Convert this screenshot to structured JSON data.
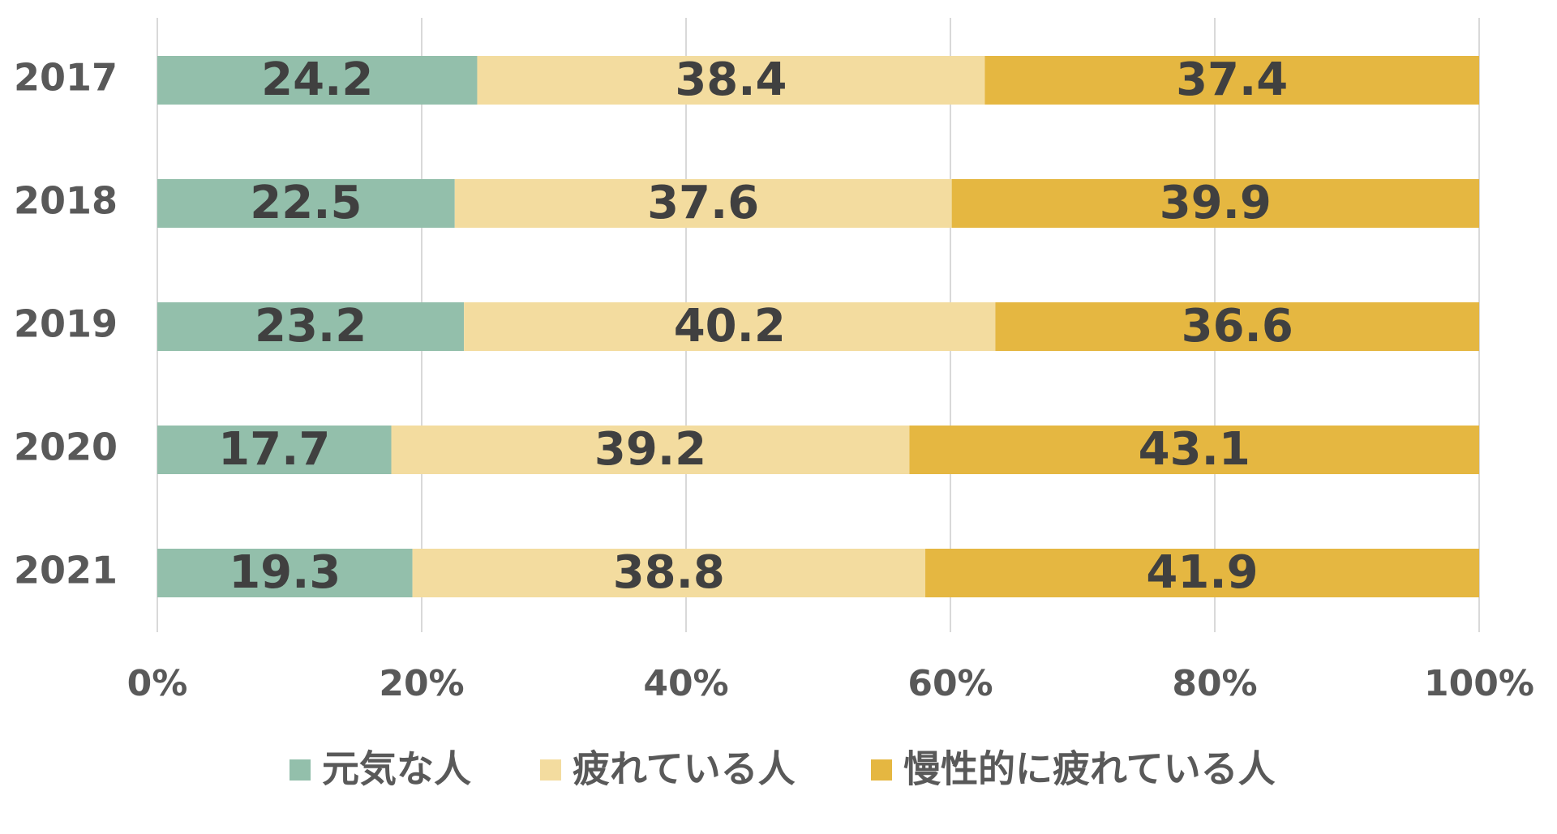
{
  "chart_data": {
    "type": "bar",
    "orientation": "horizontal",
    "stacked": "percent",
    "categories": [
      "2017",
      "2018",
      "2019",
      "2020",
      "2021"
    ],
    "series": [
      {
        "name": "元気な人",
        "color": "#93bfab",
        "values": [
          24.2,
          22.5,
          23.2,
          17.7,
          19.3
        ]
      },
      {
        "name": "疲れている人",
        "color": "#f3dc9f",
        "values": [
          38.4,
          37.6,
          40.2,
          39.2,
          38.8
        ]
      },
      {
        "name": "慢性的に疲れている人",
        "color": "#e5b741",
        "values": [
          37.4,
          39.9,
          36.6,
          43.1,
          41.9
        ]
      }
    ],
    "x_ticks": [
      "0%",
      "20%",
      "40%",
      "60%",
      "80%",
      "100%"
    ],
    "xlim": [
      0,
      100
    ],
    "grid": true,
    "legend_position": "bottom"
  }
}
